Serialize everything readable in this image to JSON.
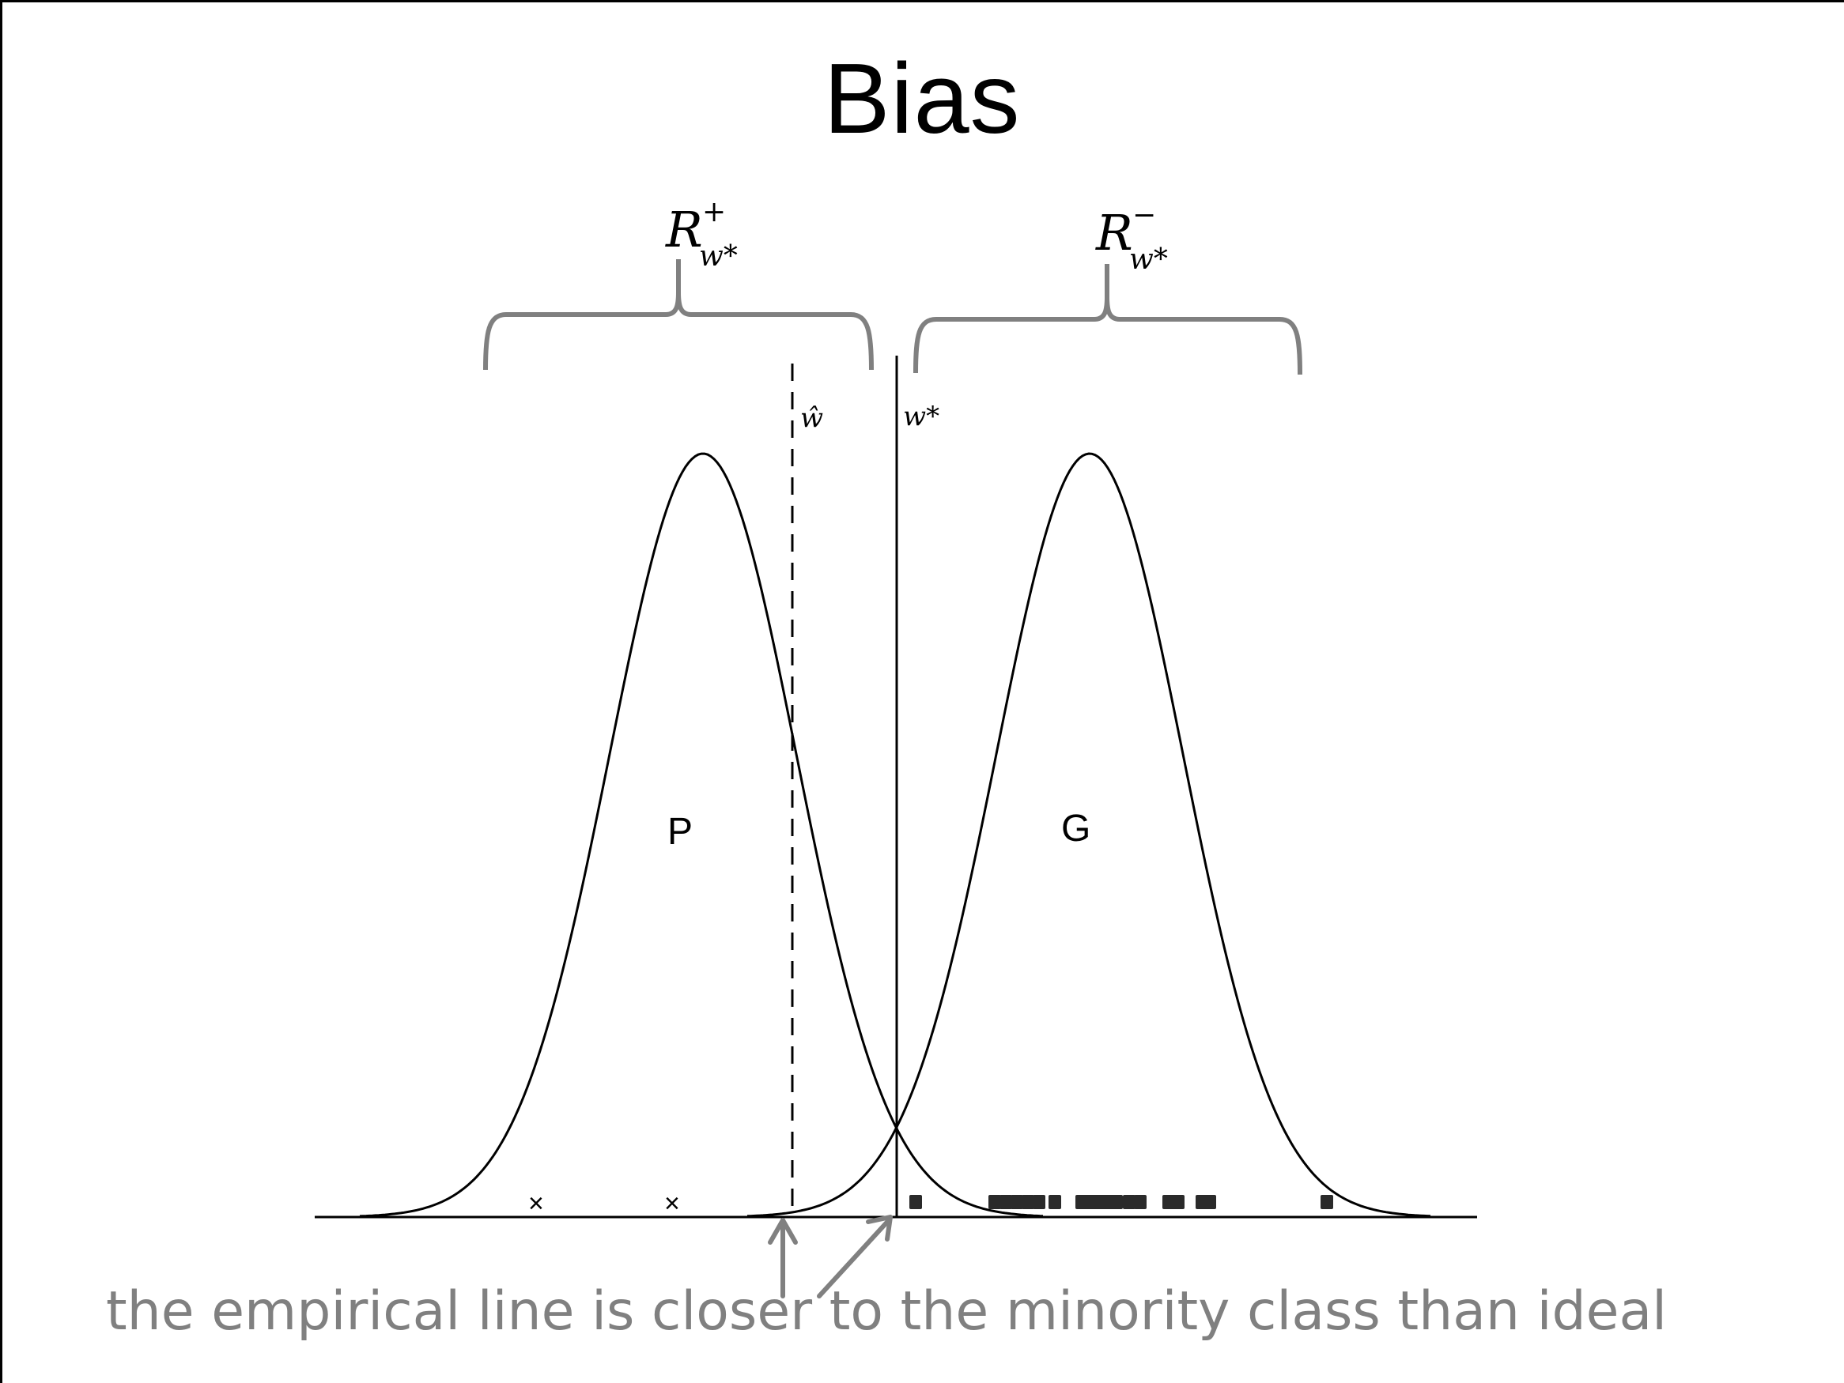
{
  "slide": {
    "title": "Bias",
    "caption": "the empirical line is closer to the minority class than ideal"
  },
  "regions": {
    "positive": {
      "base": "R",
      "sup": "+",
      "sub": "w*"
    },
    "negative": {
      "base": "R",
      "sup": "−",
      "sub": "w*"
    }
  },
  "lines": {
    "empirical_label": "ŵ",
    "optimal_label": "w*"
  },
  "distributions": {
    "left_label": "P",
    "right_label": "G"
  },
  "samples": {
    "minority_marker": "×",
    "majority_marker": "square"
  },
  "colors": {
    "ink": "#000000",
    "annotation_gray": "#808080",
    "marker_dark": "#2a2a2a"
  }
}
